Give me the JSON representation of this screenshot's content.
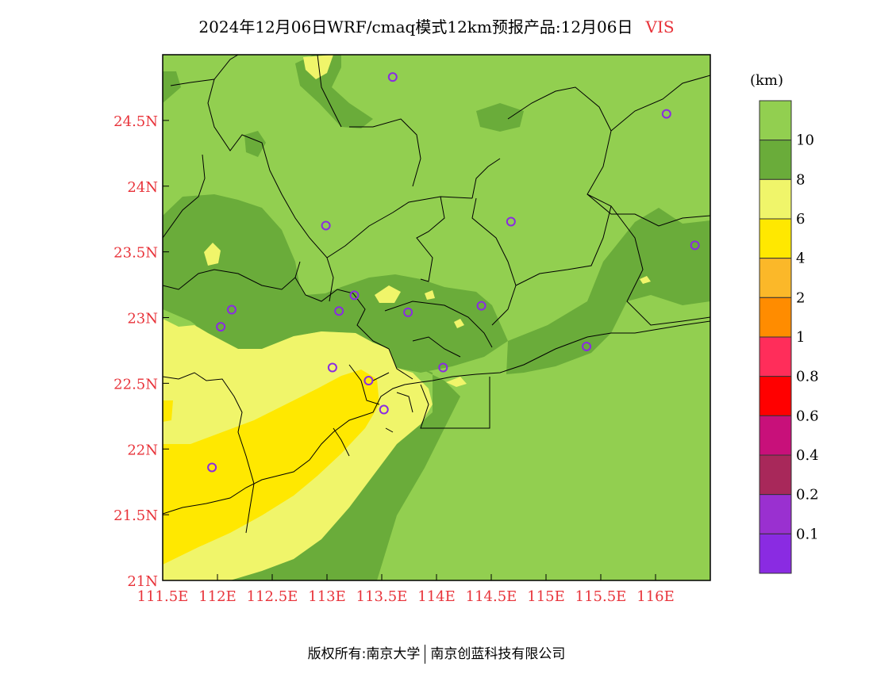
{
  "header": {
    "title": "2024年12月06日WRF/cmaq模式12km预报产品:12月06日",
    "variable": "VIS"
  },
  "footer": {
    "owner": "版权所有:南京大学",
    "partner": "南京创蓝科技有限公司"
  },
  "colors": {
    "axis_label": "#e8333a",
    "land_base": "#92cf50",
    "vis_8_10": "#6aac3a",
    "vis_6_8": "#f0f56a",
    "vis_4_6": "#ffe800",
    "station_marker": "#8a2be2",
    "boundary_line": "#000000"
  },
  "map": {
    "lon_range": [
      111.5,
      116.5
    ],
    "lat_range": [
      21.0,
      25.0
    ],
    "x_ticks": [
      {
        "value": 111.5,
        "label": "111.5E"
      },
      {
        "value": 112.0,
        "label": "112E"
      },
      {
        "value": 112.5,
        "label": "112.5E"
      },
      {
        "value": 113.0,
        "label": "113E"
      },
      {
        "value": 113.5,
        "label": "113.5E"
      },
      {
        "value": 114.0,
        "label": "114E"
      },
      {
        "value": 114.5,
        "label": "114.5E"
      },
      {
        "value": 115.0,
        "label": "115E"
      },
      {
        "value": 115.5,
        "label": "115.5E"
      },
      {
        "value": 116.0,
        "label": "116E"
      }
    ],
    "y_ticks": [
      {
        "value": 21.0,
        "label": "21N"
      },
      {
        "value": 21.5,
        "label": "21.5N"
      },
      {
        "value": 22.0,
        "label": "22N"
      },
      {
        "value": 22.5,
        "label": "22.5N"
      },
      {
        "value": 23.0,
        "label": "23N"
      },
      {
        "value": 23.5,
        "label": "23.5N"
      },
      {
        "value": 24.0,
        "label": "24N"
      },
      {
        "value": 24.5,
        "label": "24.5N"
      }
    ],
    "stations": [
      {
        "lon": 113.6,
        "lat": 24.83
      },
      {
        "lon": 116.1,
        "lat": 24.55
      },
      {
        "lon": 112.99,
        "lat": 23.7
      },
      {
        "lon": 114.68,
        "lat": 23.73
      },
      {
        "lon": 116.36,
        "lat": 23.55
      },
      {
        "lon": 112.13,
        "lat": 23.06
      },
      {
        "lon": 112.03,
        "lat": 22.93
      },
      {
        "lon": 113.11,
        "lat": 23.05
      },
      {
        "lon": 113.25,
        "lat": 23.17
      },
      {
        "lon": 113.74,
        "lat": 23.04
      },
      {
        "lon": 114.41,
        "lat": 23.09
      },
      {
        "lon": 115.37,
        "lat": 22.78
      },
      {
        "lon": 113.05,
        "lat": 22.62
      },
      {
        "lon": 113.38,
        "lat": 22.52
      },
      {
        "lon": 114.06,
        "lat": 22.62
      },
      {
        "lon": 113.52,
        "lat": 22.3
      },
      {
        "lon": 111.95,
        "lat": 21.86
      }
    ]
  },
  "legend": {
    "unit": "(km)",
    "bins": [
      {
        "color": "#92cf50"
      },
      {
        "color": "#6aac3a",
        "label": "10"
      },
      {
        "color": "#f0f56a",
        "label": "8"
      },
      {
        "color": "#ffe800",
        "label": "6"
      },
      {
        "color": "#fbb829",
        "label": "4"
      },
      {
        "color": "#ff8c00",
        "label": "2"
      },
      {
        "color": "#ff2d5a",
        "label": "1"
      },
      {
        "color": "#ff0000",
        "label": "0.8"
      },
      {
        "color": "#c8107a",
        "label": "0.6"
      },
      {
        "color": "#a8285a",
        "label": "0.4"
      },
      {
        "color": "#9a30d0",
        "label": "0.2"
      },
      {
        "color": "#8a2be2",
        "label": "0.1"
      }
    ]
  }
}
